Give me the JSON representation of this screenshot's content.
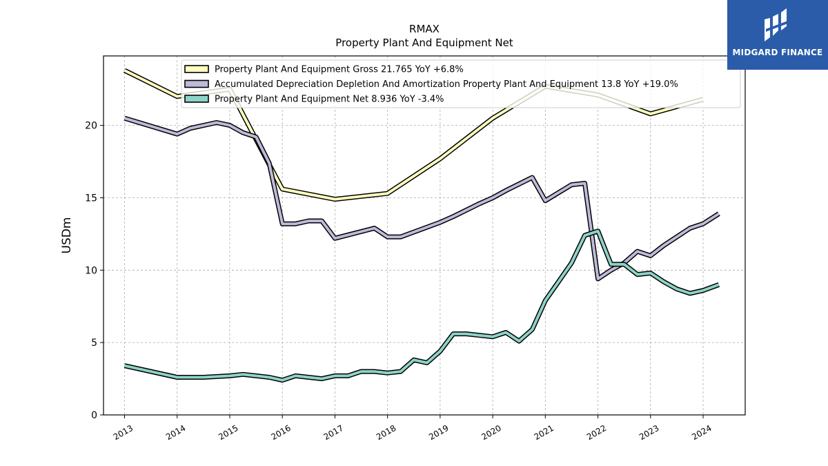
{
  "chart_data": {
    "type": "line",
    "title": "RMAX",
    "subtitle": "Property Plant And Equipment Net",
    "ylabel": "USDm",
    "xlabel": "",
    "ylim": [
      0,
      24.8
    ],
    "xlim": [
      2012.6,
      2024.8
    ],
    "yticks": [
      0,
      5,
      10,
      15,
      20
    ],
    "xticks": [
      "2013",
      "2014",
      "2015",
      "2016",
      "2017",
      "2018",
      "2019",
      "2020",
      "2021",
      "2022",
      "2023",
      "2024"
    ],
    "grid": true,
    "legend_position": "top",
    "series": [
      {
        "name": "Property Plant And Equipment Gross  21.765 YoY +6.8%",
        "color": "#ffffbf",
        "points": [
          [
            2013.0,
            23.8
          ],
          [
            2014.0,
            22.0
          ],
          [
            2015.0,
            22.5
          ],
          [
            2015.75,
            17.3
          ],
          [
            2016.0,
            15.6
          ],
          [
            2017.0,
            14.9
          ],
          [
            2018.0,
            15.3
          ],
          [
            2019.0,
            17.7
          ],
          [
            2020.0,
            20.5
          ],
          [
            2021.0,
            22.7
          ],
          [
            2022.0,
            22.1
          ],
          [
            2023.0,
            20.8
          ],
          [
            2024.0,
            21.8
          ]
        ]
      },
      {
        "name": "Accumulated Depreciation Depletion And Amortization Property Plant And Equipment  13.8 YoY +19.0%",
        "color": "#bebada",
        "points": [
          [
            2013.0,
            20.5
          ],
          [
            2014.0,
            19.4
          ],
          [
            2014.25,
            19.8
          ],
          [
            2014.75,
            20.2
          ],
          [
            2015.0,
            20.0
          ],
          [
            2015.25,
            19.5
          ],
          [
            2015.5,
            19.2
          ],
          [
            2015.75,
            17.4
          ],
          [
            2016.0,
            13.2
          ],
          [
            2016.25,
            13.2
          ],
          [
            2016.5,
            13.4
          ],
          [
            2016.75,
            13.4
          ],
          [
            2017.0,
            12.2
          ],
          [
            2017.75,
            12.9
          ],
          [
            2018.0,
            12.3
          ],
          [
            2018.25,
            12.3
          ],
          [
            2019.0,
            13.3
          ],
          [
            2019.25,
            13.7
          ],
          [
            2019.75,
            14.6
          ],
          [
            2020.0,
            15.0
          ],
          [
            2020.25,
            15.5
          ],
          [
            2020.75,
            16.4
          ],
          [
            2021.0,
            14.8
          ],
          [
            2021.5,
            15.9
          ],
          [
            2021.75,
            16.0
          ],
          [
            2022.0,
            9.4
          ],
          [
            2022.25,
            10.0
          ],
          [
            2022.5,
            10.5
          ],
          [
            2022.75,
            11.3
          ],
          [
            2023.0,
            11.0
          ],
          [
            2023.25,
            11.7
          ],
          [
            2023.5,
            12.3
          ],
          [
            2023.75,
            12.9
          ],
          [
            2024.0,
            13.2
          ],
          [
            2024.3,
            13.9
          ]
        ]
      },
      {
        "name": "Property Plant And Equipment Net  8.936 YoY -3.4%",
        "color": "#8dd3c7",
        "points": [
          [
            2013.0,
            3.4
          ],
          [
            2014.0,
            2.6
          ],
          [
            2014.25,
            2.6
          ],
          [
            2014.5,
            2.6
          ],
          [
            2015.0,
            2.7
          ],
          [
            2015.25,
            2.8
          ],
          [
            2015.5,
            2.7
          ],
          [
            2015.75,
            2.6
          ],
          [
            2016.0,
            2.4
          ],
          [
            2016.25,
            2.7
          ],
          [
            2016.5,
            2.6
          ],
          [
            2016.75,
            2.5
          ],
          [
            2017.0,
            2.7
          ],
          [
            2017.25,
            2.7
          ],
          [
            2017.5,
            3.0
          ],
          [
            2017.75,
            3.0
          ],
          [
            2018.0,
            2.9
          ],
          [
            2018.25,
            3.0
          ],
          [
            2018.5,
            3.8
          ],
          [
            2018.75,
            3.6
          ],
          [
            2019.0,
            4.4
          ],
          [
            2019.25,
            5.6
          ],
          [
            2019.5,
            5.6
          ],
          [
            2019.75,
            5.5
          ],
          [
            2020.0,
            5.4
          ],
          [
            2020.25,
            5.7
          ],
          [
            2020.5,
            5.1
          ],
          [
            2020.75,
            5.9
          ],
          [
            2021.0,
            7.9
          ],
          [
            2021.25,
            9.2
          ],
          [
            2021.5,
            10.5
          ],
          [
            2021.75,
            12.4
          ],
          [
            2022.0,
            12.7
          ],
          [
            2022.25,
            10.4
          ],
          [
            2022.5,
            10.4
          ],
          [
            2022.75,
            9.7
          ],
          [
            2023.0,
            9.8
          ],
          [
            2023.25,
            9.2
          ],
          [
            2023.5,
            8.7
          ],
          [
            2023.75,
            8.4
          ],
          [
            2024.0,
            8.6
          ],
          [
            2024.3,
            9.0
          ]
        ]
      }
    ]
  },
  "logo": {
    "text": "MIDGARD FINANCE"
  },
  "colors": {
    "axis": "#000000",
    "grid": "#aaaaaa",
    "logo_bg": "#2a5caa"
  }
}
